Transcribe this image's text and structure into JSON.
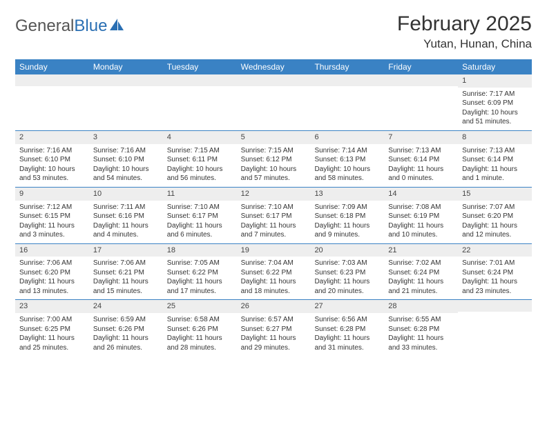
{
  "logo": {
    "text1": "General",
    "text2": "Blue"
  },
  "title": "February 2025",
  "location": "Yutan, Hunan, China",
  "colors": {
    "header_bg": "#3a82c4",
    "header_text": "#ffffff",
    "daynum_bg": "#eeeeee",
    "border": "#3a82c4",
    "page_bg": "#ffffff",
    "text": "#333333"
  },
  "weekdays": [
    "Sunday",
    "Monday",
    "Tuesday",
    "Wednesday",
    "Thursday",
    "Friday",
    "Saturday"
  ],
  "label": {
    "sunrise": "Sunrise: ",
    "sunset": "Sunset: ",
    "daylight": "Daylight: "
  },
  "weeks": [
    [
      null,
      null,
      null,
      null,
      null,
      null,
      {
        "n": "1",
        "sr": "7:17 AM",
        "ss": "6:09 PM",
        "dl": "10 hours and 51 minutes."
      }
    ],
    [
      {
        "n": "2",
        "sr": "7:16 AM",
        "ss": "6:10 PM",
        "dl": "10 hours and 53 minutes."
      },
      {
        "n": "3",
        "sr": "7:16 AM",
        "ss": "6:10 PM",
        "dl": "10 hours and 54 minutes."
      },
      {
        "n": "4",
        "sr": "7:15 AM",
        "ss": "6:11 PM",
        "dl": "10 hours and 56 minutes."
      },
      {
        "n": "5",
        "sr": "7:15 AM",
        "ss": "6:12 PM",
        "dl": "10 hours and 57 minutes."
      },
      {
        "n": "6",
        "sr": "7:14 AM",
        "ss": "6:13 PM",
        "dl": "10 hours and 58 minutes."
      },
      {
        "n": "7",
        "sr": "7:13 AM",
        "ss": "6:14 PM",
        "dl": "11 hours and 0 minutes."
      },
      {
        "n": "8",
        "sr": "7:13 AM",
        "ss": "6:14 PM",
        "dl": "11 hours and 1 minute."
      }
    ],
    [
      {
        "n": "9",
        "sr": "7:12 AM",
        "ss": "6:15 PM",
        "dl": "11 hours and 3 minutes."
      },
      {
        "n": "10",
        "sr": "7:11 AM",
        "ss": "6:16 PM",
        "dl": "11 hours and 4 minutes."
      },
      {
        "n": "11",
        "sr": "7:10 AM",
        "ss": "6:17 PM",
        "dl": "11 hours and 6 minutes."
      },
      {
        "n": "12",
        "sr": "7:10 AM",
        "ss": "6:17 PM",
        "dl": "11 hours and 7 minutes."
      },
      {
        "n": "13",
        "sr": "7:09 AM",
        "ss": "6:18 PM",
        "dl": "11 hours and 9 minutes."
      },
      {
        "n": "14",
        "sr": "7:08 AM",
        "ss": "6:19 PM",
        "dl": "11 hours and 10 minutes."
      },
      {
        "n": "15",
        "sr": "7:07 AM",
        "ss": "6:20 PM",
        "dl": "11 hours and 12 minutes."
      }
    ],
    [
      {
        "n": "16",
        "sr": "7:06 AM",
        "ss": "6:20 PM",
        "dl": "11 hours and 13 minutes."
      },
      {
        "n": "17",
        "sr": "7:06 AM",
        "ss": "6:21 PM",
        "dl": "11 hours and 15 minutes."
      },
      {
        "n": "18",
        "sr": "7:05 AM",
        "ss": "6:22 PM",
        "dl": "11 hours and 17 minutes."
      },
      {
        "n": "19",
        "sr": "7:04 AM",
        "ss": "6:22 PM",
        "dl": "11 hours and 18 minutes."
      },
      {
        "n": "20",
        "sr": "7:03 AM",
        "ss": "6:23 PM",
        "dl": "11 hours and 20 minutes."
      },
      {
        "n": "21",
        "sr": "7:02 AM",
        "ss": "6:24 PM",
        "dl": "11 hours and 21 minutes."
      },
      {
        "n": "22",
        "sr": "7:01 AM",
        "ss": "6:24 PM",
        "dl": "11 hours and 23 minutes."
      }
    ],
    [
      {
        "n": "23",
        "sr": "7:00 AM",
        "ss": "6:25 PM",
        "dl": "11 hours and 25 minutes."
      },
      {
        "n": "24",
        "sr": "6:59 AM",
        "ss": "6:26 PM",
        "dl": "11 hours and 26 minutes."
      },
      {
        "n": "25",
        "sr": "6:58 AM",
        "ss": "6:26 PM",
        "dl": "11 hours and 28 minutes."
      },
      {
        "n": "26",
        "sr": "6:57 AM",
        "ss": "6:27 PM",
        "dl": "11 hours and 29 minutes."
      },
      {
        "n": "27",
        "sr": "6:56 AM",
        "ss": "6:28 PM",
        "dl": "11 hours and 31 minutes."
      },
      {
        "n": "28",
        "sr": "6:55 AM",
        "ss": "6:28 PM",
        "dl": "11 hours and 33 minutes."
      },
      null
    ]
  ]
}
